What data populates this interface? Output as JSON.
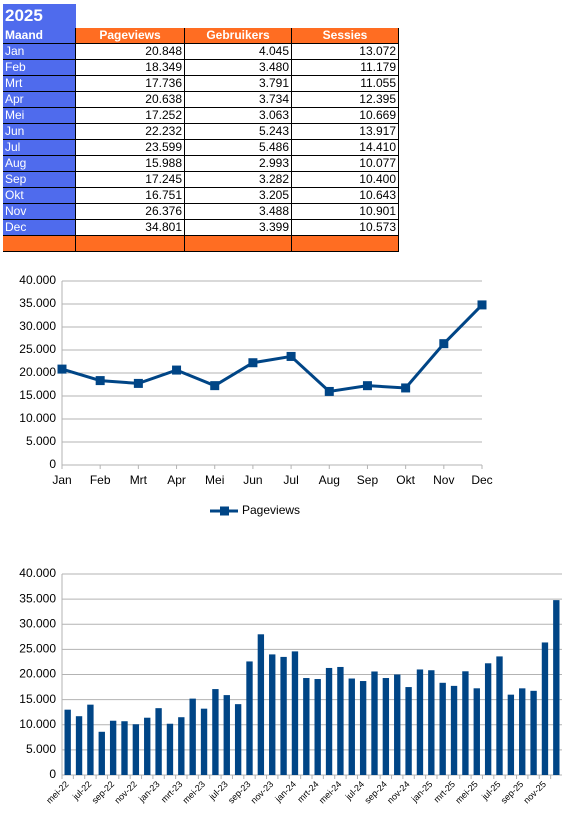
{
  "table": {
    "title": "2025",
    "header": [
      "Maand",
      "Pageviews",
      "Gebruikers",
      "Sessies"
    ],
    "rows": [
      [
        "Jan",
        "20.848",
        "4.045",
        "13.072"
      ],
      [
        "Feb",
        "18.349",
        "3.480",
        "11.179"
      ],
      [
        "Mrt",
        "17.736",
        "3.791",
        "11.055"
      ],
      [
        "Apr",
        "20.638",
        "3.734",
        "12.395"
      ],
      [
        "Mei",
        "17.252",
        "3.063",
        "10.669"
      ],
      [
        "Jun",
        "22.232",
        "5.243",
        "13.917"
      ],
      [
        "Jul",
        "23.599",
        "5.486",
        "14.410"
      ],
      [
        "Aug",
        "15.988",
        "2.993",
        "10.077"
      ],
      [
        "Sep",
        "17.245",
        "3.282",
        "10.400"
      ],
      [
        "Okt",
        "16.751",
        "3.205",
        "10.643"
      ],
      [
        "Nov",
        "26.376",
        "3.488",
        "10.901"
      ],
      [
        "Dec",
        "34.801",
        "3.399",
        "10.573"
      ]
    ]
  },
  "chart_data": [
    {
      "type": "line",
      "categories": [
        "Jan",
        "Feb",
        "Mrt",
        "Apr",
        "Mei",
        "Jun",
        "Jul",
        "Aug",
        "Sep",
        "Okt",
        "Nov",
        "Dec"
      ],
      "series": [
        {
          "name": "Pageviews",
          "color": "#004586",
          "values": [
            20848,
            18349,
            17736,
            20638,
            17252,
            22232,
            23599,
            15988,
            17245,
            16751,
            26376,
            34801
          ]
        }
      ],
      "ylim": [
        0,
        40000
      ],
      "yticks": [
        0,
        {
          "value": 5000,
          "label": "5.000"
        },
        {
          "value": 10000,
          "label": "10.000"
        },
        {
          "value": 15000,
          "label": "15.000"
        },
        {
          "value": 20000,
          "label": "20.000"
        },
        {
          "value": 25000,
          "label": "25.000"
        },
        {
          "value": 30000,
          "label": "30.000"
        },
        {
          "value": 35000,
          "label": "35.000"
        },
        {
          "value": 40000,
          "label": "40.000"
        }
      ],
      "grid": true,
      "legend": "bottom"
    },
    {
      "type": "bar",
      "categories": [
        "mei-22",
        null,
        "jul-22",
        null,
        "sep-22",
        null,
        "nov-22",
        null,
        "jan-23",
        null,
        "mrt-23",
        null,
        "mei-23",
        null,
        "jul-23",
        null,
        "sep-23",
        null,
        "nov-23",
        null,
        "jan-24",
        null,
        "mrt-24",
        null,
        "mei-24",
        null,
        "jul-24",
        null,
        "sep-24",
        null,
        "nov-24",
        null,
        "jan-25",
        null,
        "mrt-25",
        null,
        "mei-25",
        null,
        "jul-25",
        null,
        "sep-25",
        null,
        "nov-25",
        null
      ],
      "values": [
        13000,
        11700,
        14000,
        8600,
        10800,
        10700,
        10100,
        11400,
        13300,
        10200,
        11500,
        15200,
        13200,
        17100,
        15900,
        14100,
        22600,
        28000,
        24000,
        23500,
        24600,
        19300,
        19100,
        21300,
        21500,
        19200,
        18700,
        20600,
        19300,
        20000,
        17500,
        21000,
        20848,
        18349,
        17736,
        20638,
        17252,
        22232,
        23599,
        15988,
        17245,
        16751,
        26376,
        34801
      ],
      "color": "#004586",
      "ylim": [
        0,
        40000
      ],
      "yticks": [
        0,
        {
          "value": 5000,
          "label": "5.000"
        },
        {
          "value": 10000,
          "label": "10.000"
        },
        {
          "value": 15000,
          "label": "15.000"
        },
        {
          "value": 20000,
          "label": "20.000"
        },
        {
          "value": 25000,
          "label": "25.000"
        },
        {
          "value": 30000,
          "label": "30.000"
        },
        {
          "value": 35000,
          "label": "35.000"
        },
        {
          "value": 40000,
          "label": "40.000"
        }
      ],
      "grid": true
    }
  ]
}
